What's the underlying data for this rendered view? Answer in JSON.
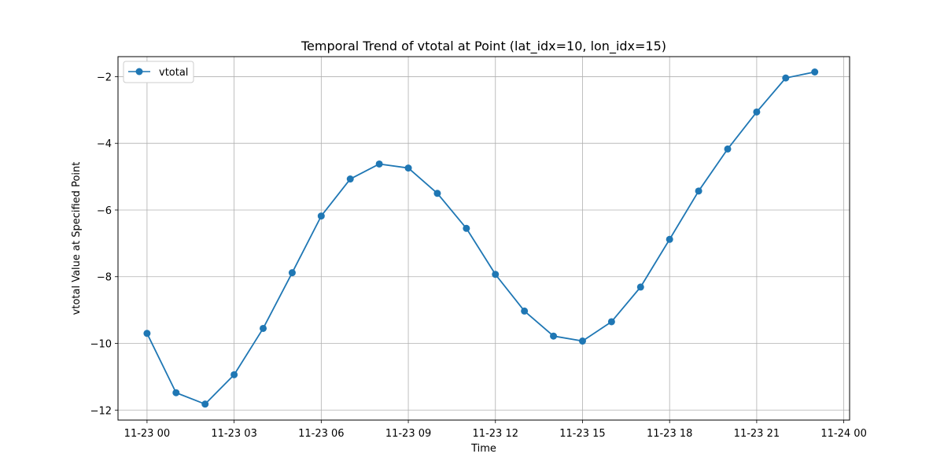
{
  "chart_data": {
    "type": "line",
    "title": "Temporal Trend of vtotal at Point (lat_idx=10, lon_idx=15)",
    "xlabel": "Time",
    "ylabel": "vtotal Value at Specified Point",
    "x": [
      "11-23 00:00",
      "11-23 01:00",
      "11-23 02:00",
      "11-23 03:00",
      "11-23 04:00",
      "11-23 05:00",
      "11-23 06:00",
      "11-23 07:00",
      "11-23 08:00",
      "11-23 09:00",
      "11-23 10:00",
      "11-23 11:00",
      "11-23 12:00",
      "11-23 13:00",
      "11-23 14:00",
      "11-23 15:00",
      "11-23 16:00",
      "11-23 17:00",
      "11-23 18:00",
      "11-23 19:00",
      "11-23 20:00",
      "11-23 21:00",
      "11-23 22:00",
      "11-23 23:00"
    ],
    "x_ticks": [
      "11-23 00",
      "11-23 03",
      "11-23 06",
      "11-23 09",
      "11-23 12",
      "11-23 15",
      "11-23 18",
      "11-23 21",
      "11-24 00"
    ],
    "y_ticks": [
      "−2",
      "−4",
      "−6",
      "−8",
      "−10",
      "−12"
    ],
    "series": [
      {
        "name": "vtotal",
        "color": "#1f77b4",
        "values": [
          -9.7,
          -11.48,
          -11.82,
          -10.94,
          -9.55,
          -7.88,
          -6.18,
          -5.07,
          -4.62,
          -4.74,
          -5.5,
          -6.55,
          -7.93,
          -9.03,
          -9.78,
          -9.93,
          -9.35,
          -8.31,
          -6.88,
          -5.43,
          -4.17,
          -3.06,
          -2.04,
          -1.86
        ]
      }
    ],
    "xlim_hours": [
      -1,
      24.2
    ],
    "ylim": [
      -12.3,
      -1.4
    ],
    "grid": true,
    "legend_position": "upper-left"
  }
}
